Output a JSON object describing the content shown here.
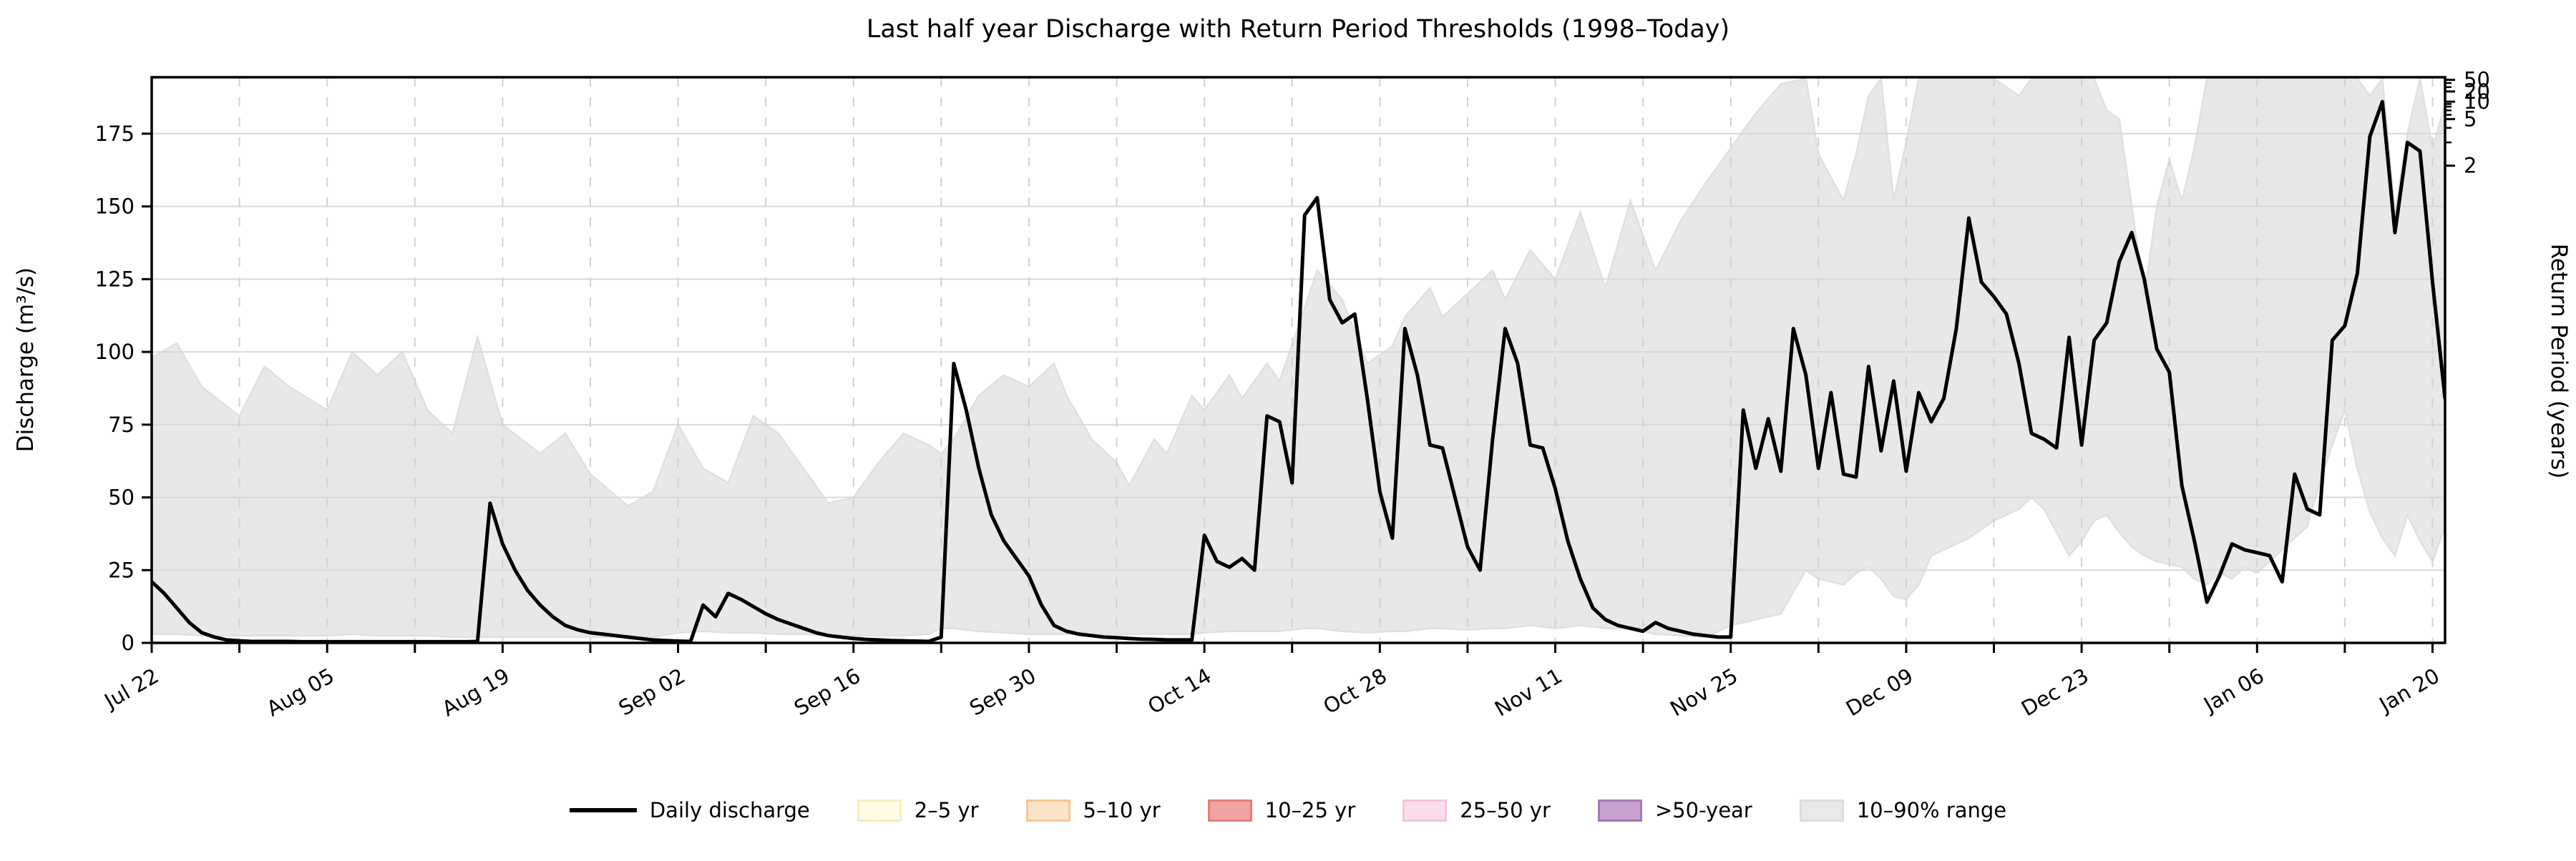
{
  "chart_data": {
    "type": "line",
    "title": "Last half year Discharge with Return Period Thresholds (1998–Today)",
    "ylabel_left": "Discharge (m³/s)",
    "ylabel_right": "Return Period (years)",
    "ylim": [
      0,
      194.4
    ],
    "y_ticks": [
      0,
      25,
      50,
      75,
      100,
      125,
      150,
      175
    ],
    "x_tick_labels": [
      "Jul 22",
      "Aug 05",
      "Aug 19",
      "Sep 02",
      "Sep 16",
      "Sep 30",
      "Oct 14",
      "Oct 28",
      "Nov 11",
      "Nov 25",
      "Dec 09",
      "Dec 23",
      "Jan 06",
      "Jan 20"
    ],
    "x_tick_days": [
      0,
      14,
      28,
      42,
      56,
      70,
      84,
      98,
      112,
      126,
      140,
      154,
      168,
      182
    ],
    "x_minor_tick_interval_days": 7,
    "x_total_days": 183,
    "grid": {
      "horizontal": "solid",
      "vertical": "dashed",
      "h_color": "#d9d9d9",
      "v_color": "#d2d2d2"
    },
    "return_period_axis": {
      "major_ticks": [
        {
          "label": "2",
          "discharge": 164.0
        },
        {
          "label": "5",
          "discharge": 180.0
        },
        {
          "label": "10",
          "discharge": 186.0
        },
        {
          "label": "20",
          "discharge": 189.5
        },
        {
          "label": "50",
          "discharge": 193.5
        }
      ],
      "minor_tick_discharges": [
        172,
        177,
        181.5,
        183,
        184.3,
        185.2,
        191,
        192.4
      ]
    },
    "series": [
      {
        "name": "Daily discharge",
        "color": "#000000",
        "start_label": "Jul 22",
        "values": [
          21,
          17,
          12,
          7,
          3.5,
          2,
          1,
          0.7,
          0.5,
          0.5,
          0.5,
          0.5,
          0.4,
          0.4,
          0.4,
          0.4,
          0.4,
          0.4,
          0.4,
          0.4,
          0.4,
          0.4,
          0.4,
          0.4,
          0.4,
          0.4,
          0.5,
          48,
          34,
          25,
          18,
          13,
          9,
          6,
          4.5,
          3.5,
          3,
          2.5,
          2,
          1.5,
          1,
          0.8,
          0.6,
          0.5,
          13,
          9,
          17,
          15,
          12.5,
          10,
          8,
          6.5,
          5,
          3.5,
          2.5,
          2,
          1.5,
          1.2,
          1,
          0.8,
          0.7,
          0.6,
          0.5,
          2,
          96,
          80,
          60,
          44,
          35,
          29,
          23,
          13,
          6,
          4,
          3,
          2.5,
          2,
          1.8,
          1.5,
          1.3,
          1.2,
          1,
          1,
          1,
          37,
          28,
          26,
          29,
          25,
          78,
          76,
          55,
          147,
          153,
          118,
          110,
          113,
          84,
          52,
          36,
          108,
          92,
          68,
          67,
          50,
          33,
          25,
          70,
          108,
          96,
          68,
          67,
          53,
          35,
          22,
          12,
          8,
          6,
          5,
          4,
          7,
          5,
          4,
          3,
          2.5,
          2,
          2,
          80,
          60,
          77,
          59,
          108,
          92,
          60,
          86,
          58,
          57,
          95,
          66,
          90,
          59,
          86,
          76,
          84,
          108,
          146,
          124,
          119,
          113,
          96,
          72,
          70,
          67,
          105,
          68,
          104,
          110,
          131,
          141,
          125,
          101,
          93,
          54,
          35,
          14,
          23,
          34,
          32,
          31,
          30,
          21,
          58,
          46,
          44,
          104,
          109,
          127,
          174,
          186,
          141,
          172,
          169,
          124,
          84
        ]
      }
    ],
    "band": {
      "name": "10–90% range",
      "fill": "#e8e8e8",
      "edge": "#e0e0e0",
      "points": [
        [
          0,
          3,
          98
        ],
        [
          2,
          3,
          103
        ],
        [
          4,
          2.5,
          88
        ],
        [
          7,
          2.5,
          78
        ],
        [
          9,
          2.5,
          95
        ],
        [
          11,
          2.5,
          88
        ],
        [
          14,
          2.5,
          80
        ],
        [
          16,
          3,
          100
        ],
        [
          18,
          2.5,
          92
        ],
        [
          20,
          2.5,
          100
        ],
        [
          22,
          2.5,
          80
        ],
        [
          24,
          2,
          72
        ],
        [
          26,
          2,
          105
        ],
        [
          28,
          2,
          75
        ],
        [
          31,
          2,
          65
        ],
        [
          33,
          2,
          72
        ],
        [
          35,
          2,
          58
        ],
        [
          38,
          2,
          47
        ],
        [
          40,
          2,
          52
        ],
        [
          42,
          3.5,
          75
        ],
        [
          44,
          4,
          60
        ],
        [
          46,
          3.5,
          55
        ],
        [
          48,
          3.5,
          78
        ],
        [
          50,
          3,
          72
        ],
        [
          52,
          3,
          60
        ],
        [
          54,
          2.5,
          48
        ],
        [
          56,
          2.5,
          50
        ],
        [
          58,
          2.5,
          62
        ],
        [
          60,
          2.5,
          72
        ],
        [
          62,
          3,
          68
        ],
        [
          63,
          5,
          65
        ],
        [
          64,
          5,
          70
        ],
        [
          66,
          4,
          85
        ],
        [
          68,
          3.5,
          92
        ],
        [
          70,
          3,
          88
        ],
        [
          72,
          3,
          96
        ],
        [
          73,
          3,
          85
        ],
        [
          75,
          3,
          70
        ],
        [
          77,
          3,
          62
        ],
        [
          78,
          3,
          54
        ],
        [
          80,
          3,
          70
        ],
        [
          81,
          3,
          65
        ],
        [
          83,
          3,
          85
        ],
        [
          84,
          3.5,
          80
        ],
        [
          86,
          4,
          92
        ],
        [
          87,
          4,
          84
        ],
        [
          89,
          4,
          96
        ],
        [
          90,
          4,
          90
        ],
        [
          92,
          5,
          115
        ],
        [
          93,
          5,
          128
        ],
        [
          95,
          4,
          118
        ],
        [
          97,
          3.5,
          96
        ],
        [
          99,
          4,
          102
        ],
        [
          100,
          4,
          112
        ],
        [
          102,
          5,
          122
        ],
        [
          103,
          5,
          112
        ],
        [
          105,
          4.5,
          120
        ],
        [
          107,
          5,
          128
        ],
        [
          108,
          5,
          118
        ],
        [
          110,
          6,
          135
        ],
        [
          112,
          5,
          125
        ],
        [
          114,
          6,
          148
        ],
        [
          116,
          5,
          122
        ],
        [
          118,
          5,
          152
        ],
        [
          120,
          3,
          128
        ],
        [
          122,
          2.5,
          145
        ],
        [
          124,
          2,
          158
        ],
        [
          126,
          6,
          170
        ],
        [
          128,
          8,
          182
        ],
        [
          130,
          10,
          192
        ],
        [
          132,
          25,
          194
        ],
        [
          133,
          22,
          168
        ],
        [
          135,
          20,
          152
        ],
        [
          136,
          24,
          168
        ],
        [
          137,
          26,
          188
        ],
        [
          138,
          22,
          194
        ],
        [
          139,
          16,
          152
        ],
        [
          140,
          15,
          172
        ],
        [
          141,
          20,
          194
        ],
        [
          142,
          30,
          194
        ],
        [
          144,
          34,
          194
        ],
        [
          145,
          36,
          194
        ],
        [
          147,
          42,
          194
        ],
        [
          149,
          46,
          188
        ],
        [
          150,
          50,
          194
        ],
        [
          151,
          46,
          194
        ],
        [
          152,
          38,
          194
        ],
        [
          153,
          30,
          194
        ],
        [
          154,
          35,
          194
        ],
        [
          155,
          42,
          194
        ],
        [
          156,
          44,
          183
        ],
        [
          157,
          38,
          180
        ],
        [
          158,
          33,
          150
        ],
        [
          159,
          30,
          119
        ],
        [
          160,
          28,
          150
        ],
        [
          161,
          27,
          166
        ],
        [
          162,
          26,
          152
        ],
        [
          163,
          22,
          170
        ],
        [
          164,
          20,
          194
        ],
        [
          165,
          24,
          194
        ],
        [
          166,
          22,
          194
        ],
        [
          167,
          26,
          194
        ],
        [
          168,
          24,
          194
        ],
        [
          169,
          28,
          194
        ],
        [
          170,
          32,
          194
        ],
        [
          171,
          36,
          194
        ],
        [
          172,
          40,
          194
        ],
        [
          173,
          55,
          194
        ],
        [
          174,
          68,
          194
        ],
        [
          175,
          80,
          194
        ],
        [
          176,
          60,
          194
        ],
        [
          177,
          45,
          188
        ],
        [
          178,
          36,
          194
        ],
        [
          179,
          30,
          148
        ],
        [
          180,
          44,
          175
        ],
        [
          181,
          35,
          194
        ],
        [
          182,
          28,
          170
        ],
        [
          183,
          40,
          185
        ]
      ]
    },
    "legend": [
      {
        "label": "Daily discharge",
        "type": "line",
        "color": "#000000"
      },
      {
        "label": "2–5 yr",
        "type": "patch",
        "fill": "#fefce4",
        "edge": "#f2efbe"
      },
      {
        "label": "5–10 yr",
        "type": "patch",
        "fill": "#fce4c8",
        "edge": "#f8c78f"
      },
      {
        "label": "10–25 yr",
        "type": "patch",
        "fill": "#f0a3a1",
        "edge": "#e87e7b"
      },
      {
        "label": "25–50 yr",
        "type": "patch",
        "fill": "#fbdcea",
        "edge": "#f7c3da"
      },
      {
        "label": ">50-year",
        "type": "patch",
        "fill": "#c5a2d0",
        "edge": "#a778b7"
      },
      {
        "label": "10–90% range",
        "type": "patch",
        "fill": "#e9e9e9",
        "edge": "#dcdcdc"
      }
    ]
  }
}
